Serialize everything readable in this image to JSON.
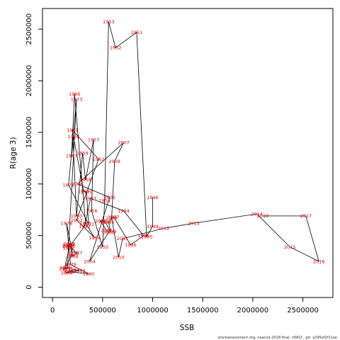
{
  "chart_data": {
    "type": "scatter",
    "xlabel": "SSB",
    "ylabel": "R(age 3)",
    "xlim": [
      -100000,
      2800000
    ],
    "ylim": [
      -100000,
      2700000
    ],
    "x_ticks": [
      0,
      500000,
      1000000,
      1500000,
      2000000,
      2500000
    ],
    "x_tick_labels": [
      "0",
      "500000",
      "1000000",
      "1500000",
      "2000000",
      "2500000"
    ],
    "y_ticks": [
      0,
      500000,
      1000000,
      1500000,
      2000000,
      2500000
    ],
    "y_tick_labels": [
      "0",
      "500000",
      "1000000",
      "1500000",
      "2000000",
      "2500000"
    ],
    "grid": false,
    "line_color": "#000000",
    "label_color": "#e00000",
    "footer": "stockassessment.org, neacod-2018-final, r9902 , git: a295ef2f11ae",
    "points": [
      {
        "year": "1946",
        "x": 1000000,
        "y": 870000
      },
      {
        "year": "1949",
        "x": 1000000,
        "y": 590000
      },
      {
        "year": "1950",
        "x": 940000,
        "y": 490000
      },
      {
        "year": "1951",
        "x": 840000,
        "y": 2470000
      },
      {
        "year": "1952",
        "x": 630000,
        "y": 2320000
      },
      {
        "year": "1953",
        "x": 560000,
        "y": 2570000
      },
      {
        "year": "1954",
        "x": 520000,
        "y": 840000
      },
      {
        "year": "1955",
        "x": 500000,
        "y": 390000
      },
      {
        "year": "1956",
        "x": 390000,
        "y": 740000
      },
      {
        "year": "1957",
        "x": 410000,
        "y": 1430000
      },
      {
        "year": "1958",
        "x": 330000,
        "y": 1040000
      },
      {
        "year": "1959",
        "x": 300000,
        "y": 1300000
      },
      {
        "year": "1960",
        "x": 240000,
        "y": 690000
      },
      {
        "year": "1961",
        "x": 200000,
        "y": 1520000
      },
      {
        "year": "1962",
        "x": 460000,
        "y": 1240000
      },
      {
        "year": "1963",
        "x": 240000,
        "y": 650000
      },
      {
        "year": "1964",
        "x": 420000,
        "y": 480000
      },
      {
        "year": "1965",
        "x": 330000,
        "y": 620000
      },
      {
        "year": "1966",
        "x": 220000,
        "y": 1870000
      },
      {
        "year": "1967",
        "x": 190000,
        "y": 1270000
      },
      {
        "year": "1968",
        "x": 210000,
        "y": 1460000
      },
      {
        "year": "1969",
        "x": 310000,
        "y": 930000
      },
      {
        "year": "1970",
        "x": 340000,
        "y": 920000
      },
      {
        "year": "1971",
        "x": 360000,
        "y": 610000
      },
      {
        "year": "1972",
        "x": 160000,
        "y": 990000
      },
      {
        "year": "1973",
        "x": 240000,
        "y": 1820000
      },
      {
        "year": "1974",
        "x": 160000,
        "y": 410000
      },
      {
        "year": "1975",
        "x": 150000,
        "y": 180000
      },
      {
        "year": "1976",
        "x": 130000,
        "y": 190000
      },
      {
        "year": "1977",
        "x": 200000,
        "y": 330000
      },
      {
        "year": "1978",
        "x": 140000,
        "y": 620000
      },
      {
        "year": "1979",
        "x": 180000,
        "y": 220000
      },
      {
        "year": "1980",
        "x": 360000,
        "y": 130000
      },
      {
        "year": "1981",
        "x": 160000,
        "y": 150000
      },
      {
        "year": "1982",
        "x": 210000,
        "y": 170000
      },
      {
        "year": "1983",
        "x": 270000,
        "y": 160000
      },
      {
        "year": "1984",
        "x": 140000,
        "y": 140000
      },
      {
        "year": "1985",
        "x": 120000,
        "y": 180000
      },
      {
        "year": "1986",
        "x": 170000,
        "y": 400000
      },
      {
        "year": "1987",
        "x": 240000,
        "y": 330000
      },
      {
        "year": "1988",
        "x": 200000,
        "y": 300000
      },
      {
        "year": "1989",
        "x": 170000,
        "y": 420000
      },
      {
        "year": "1990",
        "x": 150000,
        "y": 400000
      },
      {
        "year": "1991",
        "x": 160000,
        "y": 380000
      },
      {
        "year": "1992",
        "x": 320000,
        "y": 590000
      },
      {
        "year": "1993",
        "x": 380000,
        "y": 860000
      },
      {
        "year": "1994",
        "x": 710000,
        "y": 740000
      },
      {
        "year": "1995",
        "x": 910000,
        "y": 500000
      },
      {
        "year": "1996",
        "x": 780000,
        "y": 410000
      },
      {
        "year": "1997",
        "x": 610000,
        "y": 680000
      },
      {
        "year": "1998",
        "x": 560000,
        "y": 630000
      },
      {
        "year": "1999",
        "x": 580000,
        "y": 540000
      },
      {
        "year": "2000",
        "x": 520000,
        "y": 640000
      },
      {
        "year": "2001",
        "x": 480000,
        "y": 640000
      },
      {
        "year": "2002",
        "x": 540000,
        "y": 550000
      },
      {
        "year": "2003",
        "x": 560000,
        "y": 530000
      },
      {
        "year": "2004",
        "x": 370000,
        "y": 250000
      },
      {
        "year": "2005",
        "x": 570000,
        "y": 870000
      },
      {
        "year": "2006",
        "x": 250000,
        "y": 1000000
      },
      {
        "year": "2007",
        "x": 710000,
        "y": 1400000
      },
      {
        "year": "2008",
        "x": 620000,
        "y": 1220000
      },
      {
        "year": "2009",
        "x": 590000,
        "y": 670000
      },
      {
        "year": "2010",
        "x": 660000,
        "y": 290000
      },
      {
        "year": "2011",
        "x": 700000,
        "y": 470000
      },
      {
        "year": "2012",
        "x": 1110000,
        "y": 570000
      },
      {
        "year": "2013",
        "x": 1410000,
        "y": 620000
      },
      {
        "year": "2014",
        "x": 2040000,
        "y": 710000
      },
      {
        "year": "2015",
        "x": 2370000,
        "y": 390000
      },
      {
        "year": "2016",
        "x": 2660000,
        "y": 250000
      },
      {
        "year": "2017",
        "x": 2530000,
        "y": 690000
      },
      {
        "year": "2018",
        "x": 2100000,
        "y": 690000
      }
    ]
  }
}
